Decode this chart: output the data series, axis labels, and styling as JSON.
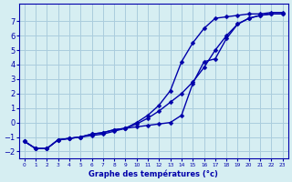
{
  "title": "",
  "xlabel": "Graphe des températures (°c)",
  "bg_color": "#d6eef2",
  "grid_color": "#aaccdd",
  "line_color": "#0000aa",
  "xlim": [
    -0.5,
    23.5
  ],
  "ylim": [
    -2.5,
    8.2
  ],
  "xticks": [
    0,
    1,
    2,
    3,
    4,
    5,
    6,
    7,
    8,
    9,
    10,
    11,
    12,
    13,
    14,
    15,
    16,
    17,
    18,
    19,
    20,
    21,
    22,
    23
  ],
  "yticks": [
    -2,
    -1,
    0,
    1,
    2,
    3,
    4,
    5,
    6,
    7
  ],
  "line1_y": [
    -1.3,
    -1.8,
    -1.8,
    -1.2,
    -1.1,
    -1.0,
    -0.9,
    -0.8,
    -0.6,
    -0.4,
    -0.1,
    0.3,
    0.8,
    1.4,
    2.0,
    2.8,
    3.8,
    5.0,
    6.0,
    6.8,
    7.2,
    7.4,
    7.5,
    7.5
  ],
  "line2_y": [
    -1.3,
    -1.8,
    -1.8,
    -1.2,
    -1.1,
    -1.0,
    -0.8,
    -0.7,
    -0.5,
    -0.4,
    0.0,
    0.5,
    1.2,
    2.2,
    4.2,
    5.5,
    6.5,
    7.2,
    7.3,
    7.4,
    7.5,
    7.5,
    7.6,
    7.6
  ],
  "line3_y": [
    -1.3,
    -1.8,
    -1.8,
    -1.2,
    -1.1,
    -1.0,
    -0.8,
    -0.7,
    -0.5,
    -0.4,
    -0.3,
    -0.2,
    -0.1,
    0.0,
    0.5,
    2.7,
    4.2,
    4.4,
    5.8,
    6.8,
    7.2,
    7.4,
    7.5,
    7.5
  ]
}
